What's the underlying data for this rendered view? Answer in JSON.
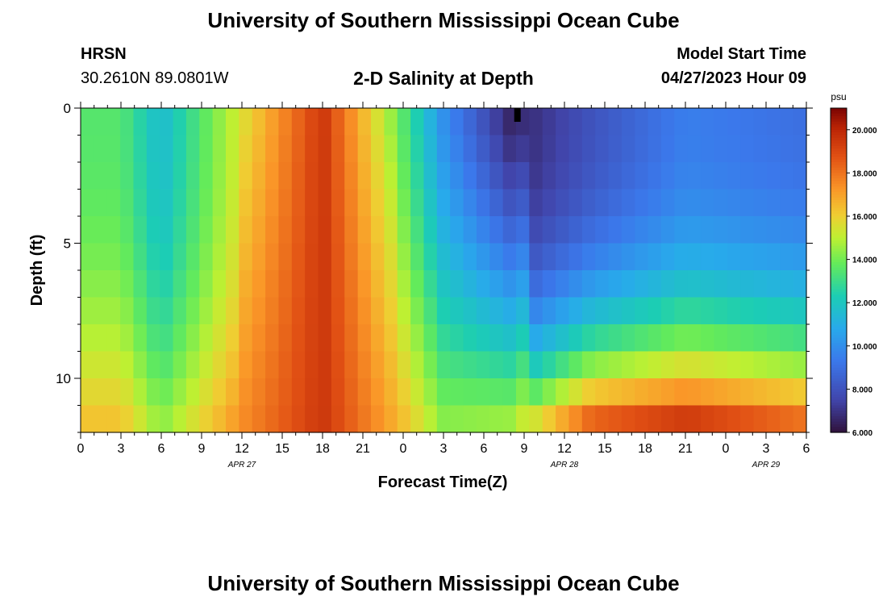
{
  "header": {
    "title": "University of Southern Mississippi Ocean Cube",
    "station_code": "HRSN",
    "station_coords": "30.2610N  89.0801W",
    "plot_title": "2-D Salinity at Depth",
    "model_start_label": "Model Start Time",
    "model_start_value": "04/27/2023 Hour 09"
  },
  "footer": {
    "title": "University of Southern Mississippi Ocean Cube"
  },
  "chart_data": {
    "type": "heatmap",
    "title": "2-D Salinity at Depth",
    "xlabel": "Forecast Time(Z)",
    "ylabel": "Depth (ft)",
    "x_hours_range": [
      0,
      54
    ],
    "y_range_ft": [
      0,
      12
    ],
    "y_ticks": [
      0,
      5,
      10
    ],
    "x_ticks": [
      "0",
      "3",
      "6",
      "9",
      "12",
      "15",
      "18",
      "21",
      "0",
      "3",
      "6",
      "9",
      "12",
      "15",
      "18",
      "21",
      "0",
      "3",
      "6"
    ],
    "date_labels": [
      {
        "hour": 12,
        "text": "APR 27"
      },
      {
        "hour": 36,
        "text": "APR 28"
      },
      {
        "hour": 51,
        "text": "APR 29"
      }
    ],
    "colorbar": {
      "unit": "psu",
      "min": 6.0,
      "max": 21.0,
      "ticks": [
        "6.000",
        "8.000",
        "10.000",
        "12.000",
        "14.000",
        "16.000",
        "18.000",
        "20.000"
      ]
    },
    "time_steps": 55,
    "depth_levels": 12,
    "marker_hour": 32.5,
    "key_points": [
      {
        "hour": 3,
        "surface": 13.5,
        "bottom": 16.5
      },
      {
        "hour": 6,
        "surface": 11.5,
        "bottom": 14.5
      },
      {
        "hour": 12,
        "surface": 15.5,
        "bottom": 17.5
      },
      {
        "hour": 18,
        "surface": 19.5,
        "bottom": 19.5
      },
      {
        "hour": 24,
        "surface": 13.5,
        "bottom": 16.5
      },
      {
        "hour": 27,
        "surface": 10.0,
        "bottom": 14.5
      },
      {
        "hour": 32,
        "surface": 6.5,
        "bottom": 15.0
      },
      {
        "hour": 38,
        "surface": 8.0,
        "bottom": 19.5
      },
      {
        "hour": 45,
        "surface": 9.5,
        "bottom": 20.5
      },
      {
        "hour": 54,
        "surface": 9.0,
        "bottom": 19.0
      }
    ]
  }
}
